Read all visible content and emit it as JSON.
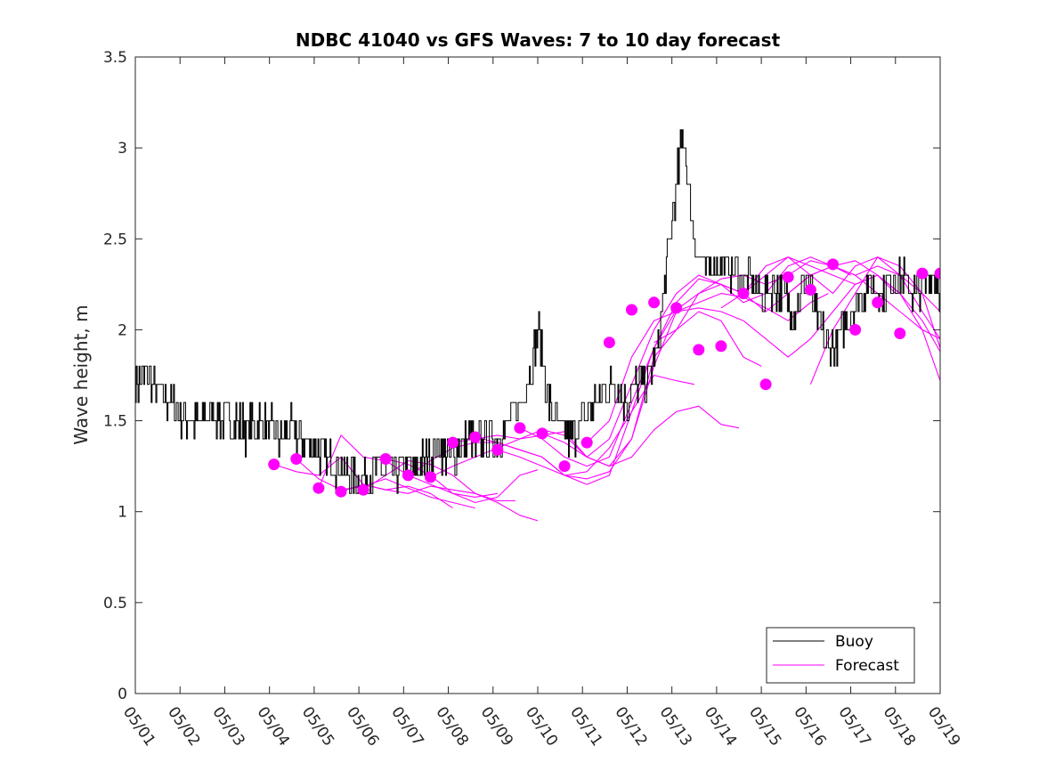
{
  "chart_data": {
    "type": "line",
    "title": "NDBC 41040 vs GFS Waves: 7 to 10 day forecast",
    "xlabel": "",
    "ylabel": "Wave height, m",
    "xlim": [
      "05/01",
      "05/19"
    ],
    "ylim": [
      0,
      3.5
    ],
    "y_ticks": [
      0,
      0.5,
      1,
      1.5,
      2,
      2.5,
      3,
      3.5
    ],
    "y_tick_labels": [
      "0",
      "0.5",
      "1",
      "1.5",
      "2",
      "2.5",
      "3",
      "3.5"
    ],
    "x_tick_labels": [
      "05/01",
      "05/02",
      "05/03",
      "05/04",
      "05/05",
      "05/06",
      "05/07",
      "05/08",
      "05/09",
      "05/10",
      "05/11",
      "05/12",
      "05/13",
      "05/14",
      "05/15",
      "05/16",
      "05/17",
      "05/18",
      "05/19"
    ],
    "grid": false,
    "legend": {
      "position": "bottom-right",
      "entries": [
        "Buoy",
        "Forecast"
      ]
    },
    "colors": {
      "buoy": "#000000",
      "forecast": "#ff00ff",
      "axis": "#262626"
    },
    "buoy": {
      "name": "Buoy",
      "x_days": [
        0,
        0.25,
        0.5,
        0.75,
        1,
        1.25,
        1.5,
        1.75,
        2,
        2.25,
        2.5,
        2.75,
        3,
        3.25,
        3.5,
        3.75,
        4,
        4.25,
        4.5,
        4.75,
        5,
        5.25,
        5.5,
        5.75,
        6,
        6.25,
        6.5,
        6.75,
        7,
        7.25,
        7.5,
        7.6,
        7.75,
        7.8,
        7.9,
        8,
        8.25,
        8.5,
        8.75,
        9,
        9.25,
        9.5,
        9.75,
        10,
        10.25,
        10.5,
        10.75,
        11,
        11.25,
        11.5,
        11.75,
        11.85,
        12,
        12.15,
        12.25,
        12.35,
        12.5,
        12.75,
        13,
        13.25,
        13.5,
        13.75,
        14,
        14.25,
        14.5,
        14.75,
        15,
        15.25,
        15.5,
        15.75,
        16,
        16.25,
        16.5,
        16.75,
        17,
        17.25,
        17.5,
        17.75,
        18
      ],
      "y": [
        1.7,
        1.75,
        1.65,
        1.6,
        1.55,
        1.5,
        1.5,
        1.55,
        1.5,
        1.5,
        1.45,
        1.5,
        1.45,
        1.4,
        1.45,
        1.4,
        1.35,
        1.3,
        1.25,
        1.2,
        1.15,
        1.2,
        1.25,
        1.2,
        1.25,
        1.2,
        1.3,
        1.35,
        1.3,
        1.35,
        1.4,
        1.35,
        1.4,
        1.45,
        1.4,
        1.4,
        1.45,
        1.55,
        1.7,
        2.0,
        1.6,
        1.45,
        1.4,
        1.5,
        1.6,
        1.65,
        1.7,
        1.6,
        1.7,
        1.75,
        2.0,
        2.3,
        2.6,
        2.9,
        3.1,
        2.8,
        2.5,
        2.3,
        2.4,
        2.35,
        2.3,
        2.25,
        2.2,
        2.25,
        2.2,
        2.1,
        2.3,
        2.05,
        1.9,
        1.95,
        2.1,
        2.2,
        2.25,
        2.2,
        2.3,
        2.25,
        2.2,
        2.3,
        2.25
      ]
    },
    "forecast": {
      "name": "Forecast",
      "runs": [
        {
          "x_days": [
            3.1,
            3.6,
            4.1,
            4.6,
            5.1,
            5.6,
            6.1,
            6.6,
            7.1
          ],
          "y": [
            1.26,
            1.22,
            1.2,
            1.3,
            1.15,
            1.12,
            1.14,
            1.1,
            1.02
          ]
        },
        {
          "x_days": [
            3.6,
            4.1,
            4.6,
            5.1,
            5.6,
            6.1,
            6.6,
            7.1,
            7.6
          ],
          "y": [
            1.29,
            1.18,
            1.12,
            1.14,
            1.18,
            1.13,
            1.08,
            1.05,
            1.02
          ]
        },
        {
          "x_days": [
            4.1,
            4.6,
            5.1,
            5.6,
            6.1,
            6.6,
            7.1,
            7.6,
            8.1
          ],
          "y": [
            1.13,
            1.42,
            1.3,
            1.28,
            1.2,
            1.15,
            1.1,
            1.08,
            1.1
          ]
        },
        {
          "x_days": [
            4.6,
            5.1,
            5.6,
            6.1,
            6.6,
            7.1,
            7.6,
            8.1,
            8.5
          ],
          "y": [
            1.11,
            1.15,
            1.12,
            1.1,
            1.14,
            1.12,
            1.1,
            1.06,
            1.06
          ]
        },
        {
          "x_days": [
            5.1,
            5.6,
            6.1,
            6.6,
            7.1,
            7.6,
            8.1,
            8.6,
            9.0
          ],
          "y": [
            1.12,
            1.2,
            1.28,
            1.26,
            1.2,
            1.1,
            1.05,
            0.98,
            0.95
          ]
        },
        {
          "x_days": [
            5.6,
            6.1,
            6.6,
            7.1,
            7.6,
            8.1,
            8.6,
            9.0
          ],
          "y": [
            1.29,
            1.26,
            1.2,
            1.1,
            1.05,
            1.08,
            1.2,
            1.23
          ]
        },
        {
          "x_days": [
            6.1,
            6.6,
            7.1,
            7.6,
            8.1,
            8.6,
            9.1,
            9.6,
            10.1,
            10.6,
            11.1,
            11.6,
            12.1,
            12.5
          ],
          "y": [
            1.2,
            1.28,
            1.35,
            1.38,
            1.38,
            1.34,
            1.3,
            1.2,
            1.22,
            1.35,
            1.55,
            1.75,
            1.72,
            1.7
          ]
        },
        {
          "x_days": [
            6.6,
            7.1,
            7.6,
            8.1,
            8.6,
            9.1,
            9.6,
            10.1,
            10.6,
            11.1,
            11.6,
            12.1,
            12.6,
            13.1,
            13.5
          ],
          "y": [
            1.19,
            1.25,
            1.3,
            1.35,
            1.4,
            1.45,
            1.42,
            1.3,
            1.25,
            1.3,
            1.45,
            1.55,
            1.58,
            1.48,
            1.46
          ]
        },
        {
          "x_days": [
            7.1,
            7.6,
            8.1,
            8.6,
            9.1,
            9.6,
            10.1,
            10.6,
            11.1,
            11.6,
            12.1,
            12.6,
            13.1,
            13.6,
            14.0
          ],
          "y": [
            1.38,
            1.4,
            1.42,
            1.4,
            1.42,
            1.44,
            1.3,
            1.25,
            1.4,
            1.85,
            2.0,
            2.1,
            2.05,
            1.85,
            1.8
          ]
        },
        {
          "x_days": [
            7.6,
            8.1,
            8.6,
            9.1,
            9.6,
            10.1,
            10.6,
            11.1,
            11.6,
            12.1,
            12.6,
            13.1,
            13.6,
            14.1,
            14.6,
            15.1,
            15.5
          ],
          "y": [
            1.41,
            1.38,
            1.34,
            1.3,
            1.2,
            1.18,
            1.22,
            1.4,
            1.8,
            2.1,
            2.15,
            2.2,
            2.18,
            2.12,
            2.05,
            2.15,
            2.2
          ]
        },
        {
          "x_days": [
            8.1,
            8.6,
            9.1,
            9.6,
            10.1,
            10.6,
            11.1,
            11.6,
            12.1,
            12.6,
            13.1,
            13.6,
            14.1,
            14.6,
            15.1,
            15.6,
            16.0
          ],
          "y": [
            1.34,
            1.3,
            1.25,
            1.2,
            1.15,
            1.2,
            1.55,
            1.9,
            2.11,
            2.2,
            2.25,
            2.2,
            2.1,
            2.2,
            2.3,
            2.35,
            2.3
          ]
        },
        {
          "x_days": [
            8.6,
            9.1,
            9.6,
            10.1,
            10.6,
            11.1,
            11.6,
            12.1,
            12.6,
            13.1,
            13.6,
            14.1,
            14.6,
            15.1,
            15.6,
            16.1,
            16.6,
            17.0
          ],
          "y": [
            1.46,
            1.4,
            1.3,
            1.25,
            1.3,
            1.6,
            1.9,
            2.15,
            2.28,
            2.25,
            2.2,
            2.3,
            2.4,
            2.35,
            2.3,
            2.25,
            2.3,
            2.2
          ]
        },
        {
          "x_days": [
            9.1,
            9.6,
            10.1,
            10.6,
            11.1,
            11.6,
            12.1,
            12.6,
            13.1,
            13.6,
            14.1,
            14.6,
            15.1,
            15.6,
            16.1,
            16.6,
            17.1,
            17.6,
            18.0
          ],
          "y": [
            1.43,
            1.38,
            1.3,
            1.4,
            1.7,
            2.0,
            2.2,
            2.3,
            2.25,
            2.15,
            2.2,
            2.35,
            2.4,
            2.35,
            2.3,
            2.2,
            2.1,
            2.0,
            1.95
          ]
        },
        {
          "x_days": [
            10.1,
            10.6,
            11.1,
            11.6,
            12.1,
            12.6,
            13.1,
            13.6,
            14.1,
            14.6,
            15.1,
            15.6,
            16.1,
            16.6,
            17.1,
            17.6,
            18.0
          ],
          "y": [
            1.38,
            1.5,
            1.85,
            2.05,
            2.1,
            2.12,
            2.1,
            2.05,
            1.95,
            1.85,
            1.95,
            2.1,
            2.25,
            2.3,
            2.2,
            2.05,
            1.88
          ]
        },
        {
          "x_days": [
            11.6,
            12.1,
            12.6,
            13.1,
            13.6,
            14.1,
            14.6,
            15.1,
            15.6,
            16.1,
            16.6,
            17.1,
            17.6,
            18.0
          ],
          "y": [
            1.93,
            2.0,
            2.2,
            2.28,
            2.3,
            2.25,
            2.3,
            2.38,
            2.35,
            2.3,
            2.35,
            2.3,
            2.2,
            2.1
          ]
        },
        {
          "x_days": [
            13.1,
            13.6,
            14.1,
            14.6,
            15.1,
            15.6,
            16.1,
            16.6,
            17.1,
            17.6,
            18.0
          ],
          "y": [
            2.12,
            2.2,
            2.35,
            2.4,
            2.3,
            2.2,
            2.35,
            2.4,
            2.3,
            2.1,
            1.95
          ]
        },
        {
          "x_days": [
            14.6,
            15.1,
            15.6,
            16.1,
            16.6,
            17.1,
            17.6,
            18.0
          ],
          "y": [
            2.2,
            2.3,
            2.35,
            2.38,
            2.3,
            2.2,
            2.0,
            1.72
          ]
        },
        {
          "x_days": [
            15.1,
            15.6,
            16.1,
            16.6,
            17.1,
            17.6,
            18.0
          ],
          "y": [
            1.7,
            2.0,
            2.2,
            2.4,
            2.35,
            2.2,
            1.9
          ]
        }
      ],
      "markers": {
        "x_days": [
          3.1,
          3.6,
          4.1,
          4.6,
          5.1,
          5.6,
          6.1,
          6.6,
          7.1,
          7.6,
          8.1,
          8.6,
          9.1,
          9.6,
          10.1,
          10.6,
          11.1,
          11.6,
          12.1,
          12.6,
          13.1,
          13.6,
          14.1,
          14.6,
          15.1,
          15.6,
          16.1,
          16.6,
          17.1,
          17.6,
          18.0
        ],
        "y": [
          1.26,
          1.29,
          1.13,
          1.11,
          1.12,
          1.29,
          1.2,
          1.19,
          1.38,
          1.41,
          1.34,
          1.46,
          1.43,
          1.25,
          1.38,
          1.93,
          2.11,
          2.15,
          2.12,
          1.89,
          1.91,
          2.2,
          1.7,
          2.29,
          2.22,
          2.36,
          2.0,
          2.15,
          1.98,
          2.31,
          2.31
        ]
      }
    }
  }
}
